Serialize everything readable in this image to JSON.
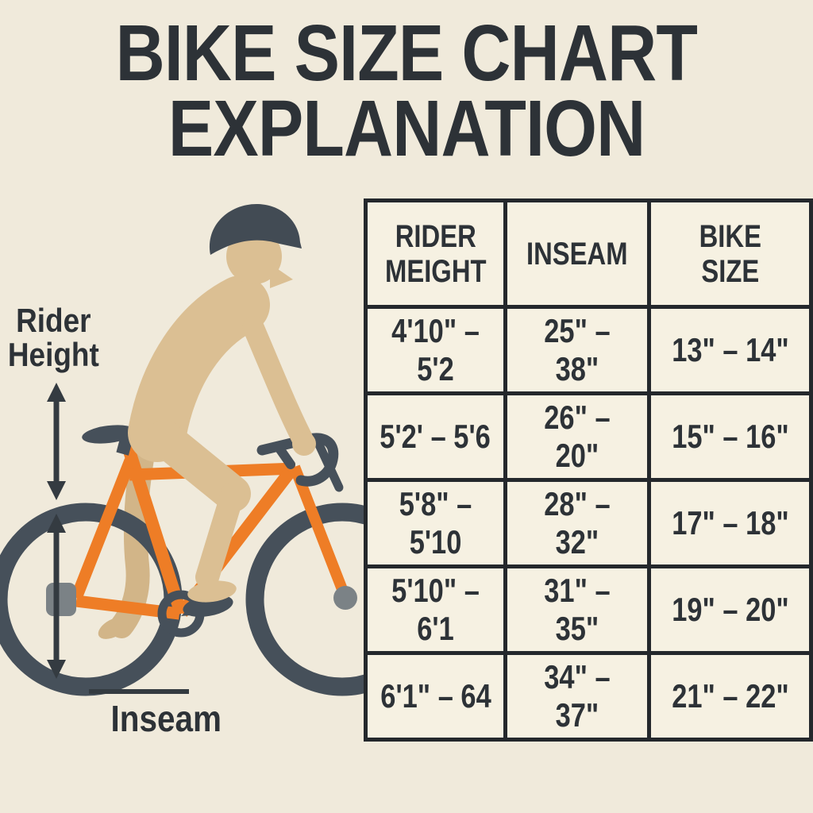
{
  "title": {
    "line1": "BIKE SIZE CHART",
    "line2": "EXPLANATION"
  },
  "labels": {
    "rider_height": "Rider\nHeight",
    "inseam": "Inseam"
  },
  "table": {
    "headers": [
      "RIDER\nMEIGHT",
      "INSEAM",
      "BIKE\nSIZE"
    ],
    "rows": [
      [
        "4'10\" – 5'2",
        "25\" – 38\"",
        "13\" – 14\""
      ],
      [
        "5'2' – 5'6",
        "26\" – 20\"",
        "15\" – 16\""
      ],
      [
        "5'8\" – 5'10",
        "28\" – 32\"",
        "17\" – 18\""
      ],
      [
        "5'10\" – 6'1",
        "31\" – 35\"",
        "19\" – 20\""
      ],
      [
        "6'1\" – 64",
        "34\" – 37\"",
        "21\" – 22\""
      ]
    ]
  },
  "illustration": {
    "icons": [
      "bicycle-icon",
      "cyclist-icon",
      "helmet-icon",
      "rider-height-arrow-icon",
      "inseam-arrow-icon"
    ]
  },
  "colors": {
    "background": "#F0EADB",
    "cell": "#F6F1E2",
    "ink": "#2D3237",
    "table_border": "#24282C",
    "slate": "#46505A",
    "helmet": "#424B54",
    "orange": "#EE7D26",
    "skin": "#DBBF93",
    "skin_shadow": "#D2B588",
    "hub": "#7B8286",
    "arrow": "#343B41"
  }
}
